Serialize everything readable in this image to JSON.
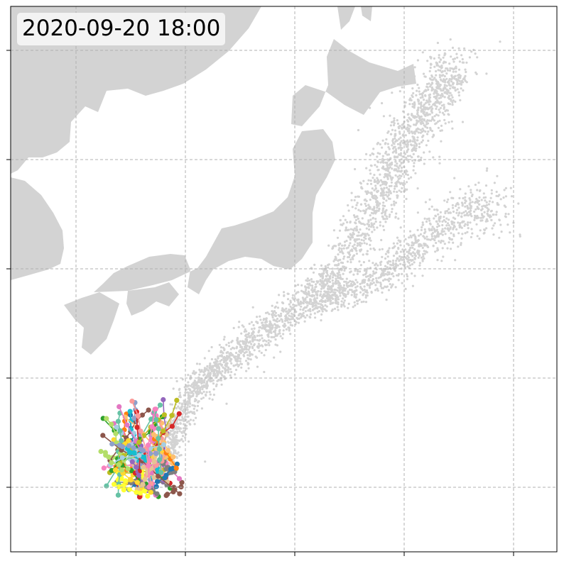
{
  "map": {
    "timestamp": "2020-09-20 18:00",
    "land_color": "#d3d3d3",
    "particle_color": "#d3d3d3",
    "grid_color": "#b0b0b0",
    "track_colors": [
      "#1f77b4",
      "#ff7f0e",
      "#2ca02c",
      "#d62728",
      "#9467bd",
      "#8c564b",
      "#e377c2",
      "#7f7f7f",
      "#bcbd22",
      "#17becf",
      "#ffd92f",
      "#fdbf6f",
      "#a6cee3",
      "#fb9a99",
      "#e5c494",
      "#ffff33",
      "#66c2a5",
      "#8da0cb",
      "#f781bf",
      "#b3de69"
    ]
  }
}
